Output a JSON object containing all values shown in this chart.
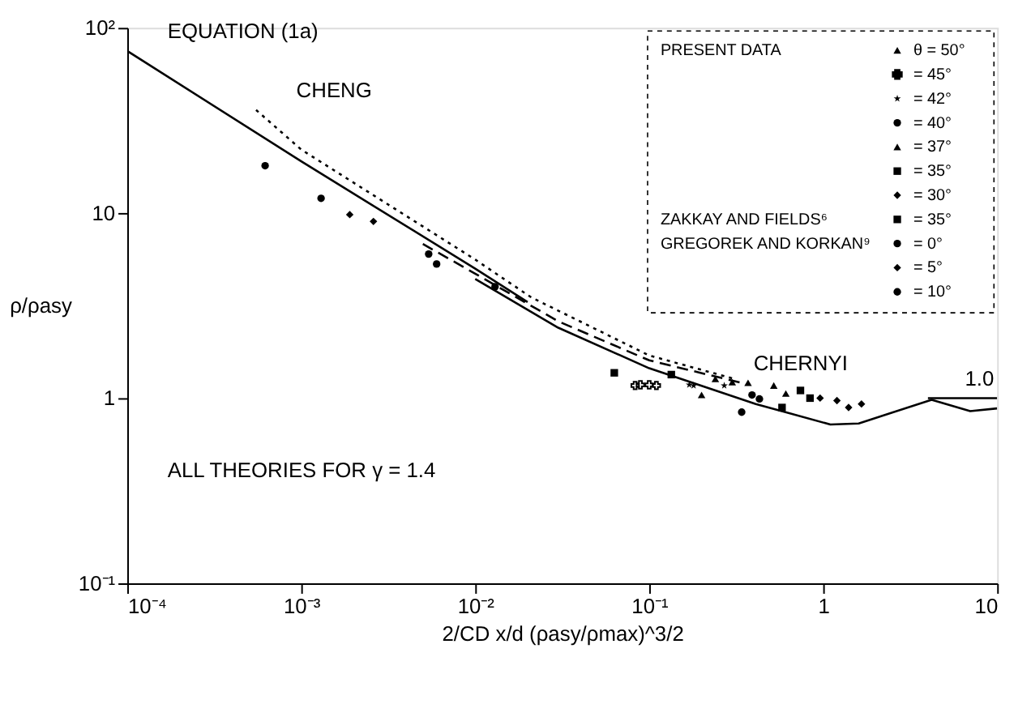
{
  "chart_data": {
    "type": "scatter",
    "xlabel": "2/CD  x/d  (ρasy/ρmax)^3/2",
    "ylabel": "ρ/ρasy",
    "log": "xy",
    "grid": false,
    "legend": "top right",
    "xlim": [
      0.0001,
      10
    ],
    "ylim": [
      0.1,
      100
    ],
    "xticks": [
      {
        "value": 0.0001,
        "label": "10⁻⁴"
      },
      {
        "value": 0.001,
        "label": "10⁻³"
      },
      {
        "value": 0.01,
        "label": "10⁻²"
      },
      {
        "value": 0.1,
        "label": "10⁻¹"
      },
      1,
      10
    ],
    "yticks": [
      {
        "value": 0.1,
        "label": "10⁻¹"
      },
      1,
      10,
      {
        "value": 100,
        "label": "10²"
      }
    ],
    "annotations": [
      "PRESENT DATA",
      "ZAKKAY AND FIELDS⁶",
      "GREGOREK AND KORKAN⁹",
      "ALL THEORIES FOR γ = 1.4"
    ],
    "series": [
      {
        "type": "line",
        "name": "EQUATION (1a)",
        "color": "#000000",
        "line_style": "solid",
        "marker": "none",
        "x": [
          0.0001,
          0.001,
          0.01,
          0.02
        ],
        "values": [
          75,
          19,
          5,
          3.3
        ]
      },
      {
        "type": "line",
        "name": "CHENG",
        "color": "#000000",
        "line_style": "dotted",
        "marker": "none",
        "x": [
          0.00055,
          0.001,
          0.01,
          0.021,
          0.1,
          0.3
        ],
        "values": [
          36,
          22,
          5.6,
          3.5,
          1.7,
          1.28
        ]
      },
      {
        "type": "line",
        "name": "CHERNYI",
        "color": "#000000",
        "line_style": "dashed",
        "marker": "none",
        "x": [
          0.005,
          0.01,
          0.03,
          0.1,
          0.35
        ],
        "values": [
          6.8,
          4.7,
          2.6,
          1.6,
          1.2
        ]
      },
      {
        "type": "line",
        "color": "#000000",
        "line_style": "solid",
        "marker": "none",
        "x": [
          0.01,
          0.03,
          0.1,
          0.41,
          1.1,
          1.6,
          4.2,
          7,
          10
        ],
        "values": [
          4.4,
          2.4,
          1.45,
          0.93,
          0.72,
          0.73,
          0.98,
          0.85,
          0.88
        ]
      },
      {
        "type": "line",
        "name": "1.0",
        "color": "#000000",
        "line_style": "solid",
        "marker": "none",
        "x": [
          4,
          10
        ],
        "values": [
          1,
          1
        ]
      },
      {
        "name": "θ = 50°",
        "color": "#000000",
        "marker": "triangle",
        "x": [
          0.24,
          0.3,
          0.37
        ],
        "values": [
          1.27,
          1.22,
          1.21
        ]
      },
      {
        "name": "= 45°",
        "color": "#000000",
        "marker": "cross",
        "x": [
          0.083,
          0.089,
          0.1,
          0.11
        ],
        "values": [
          1.17,
          1.18,
          1.18,
          1.17
        ]
      },
      {
        "name": "= 42°",
        "color": "#000000",
        "marker": "star",
        "x": [
          0.17,
          0.18,
          0.27
        ],
        "values": [
          1.18,
          1.17,
          1.17
        ]
      },
      {
        "name": "= 40°",
        "color": "#000000",
        "marker": "circle",
        "x": [
          0.34,
          0.39,
          0.43
        ],
        "values": [
          0.84,
          1.04,
          0.99
        ]
      },
      {
        "name": "= 37°",
        "color": "#000000",
        "marker": "triangle",
        "x": [
          0.2,
          0.52,
          0.61
        ],
        "values": [
          1.04,
          1.17,
          1.06
        ]
      },
      {
        "name": "= 35°",
        "color": "#000000",
        "marker": "square",
        "x": [
          0.58,
          0.74,
          0.84
        ],
        "values": [
          0.89,
          1.1,
          1.0
        ]
      },
      {
        "name": "= 30°",
        "color": "#000000",
        "marker": "diamond",
        "x": [
          0.96,
          1.2,
          1.4,
          1.66
        ],
        "values": [
          1.0,
          0.97,
          0.89,
          0.93
        ]
      },
      {
        "name": "= 35°",
        "color": "#000000",
        "marker": "square",
        "x": [
          0.063,
          0.134
        ],
        "values": [
          1.37,
          1.34
        ]
      },
      {
        "name": "= 0°",
        "color": "#000000",
        "marker": "circle",
        "x": [
          0.00062,
          0.0013
        ],
        "values": [
          18,
          12
        ]
      },
      {
        "name": "= 5°",
        "color": "#000000",
        "marker": "diamond",
        "x": [
          0.0019,
          0.0026
        ],
        "values": [
          9.8,
          9
        ]
      },
      {
        "name": "= 10°",
        "color": "#000000",
        "marker": "circle",
        "x": [
          0.0054,
          0.006,
          0.013
        ],
        "values": [
          6,
          5.3,
          4.0
        ]
      }
    ]
  }
}
